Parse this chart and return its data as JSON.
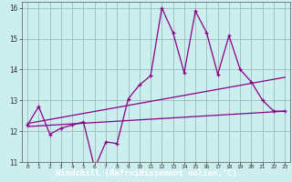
{
  "xlabel": "Windchill (Refroidissement éolien,°C)",
  "bg_color": "#cceeee",
  "line_color": "#880088",
  "label_bg_color": "#660066",
  "label_text_color": "#ffffff",
  "grid_color": "#99bbbb",
  "xlim": [
    -0.5,
    23.5
  ],
  "ylim": [
    11,
    16.2
  ],
  "xticks": [
    0,
    1,
    2,
    3,
    4,
    5,
    6,
    7,
    8,
    9,
    10,
    11,
    12,
    13,
    14,
    15,
    16,
    17,
    18,
    19,
    20,
    21,
    22,
    23
  ],
  "yticks": [
    11,
    12,
    13,
    14,
    15,
    16
  ],
  "windchill": [
    12.2,
    12.8,
    11.9,
    12.1,
    12.2,
    12.3,
    10.8,
    11.65,
    11.6,
    13.05,
    13.5,
    13.8,
    16.0,
    15.2,
    13.9,
    15.9,
    15.2,
    13.85,
    15.1,
    14.0,
    13.6,
    13.0,
    12.65,
    12.65
  ],
  "trend1_start_x": 0,
  "trend1_start_y": 12.25,
  "trend1_end_x": 23,
  "trend1_end_y": 13.75,
  "trend2_start_x": 0,
  "trend2_start_y": 12.15,
  "trend2_end_x": 23,
  "trend2_end_y": 12.65
}
